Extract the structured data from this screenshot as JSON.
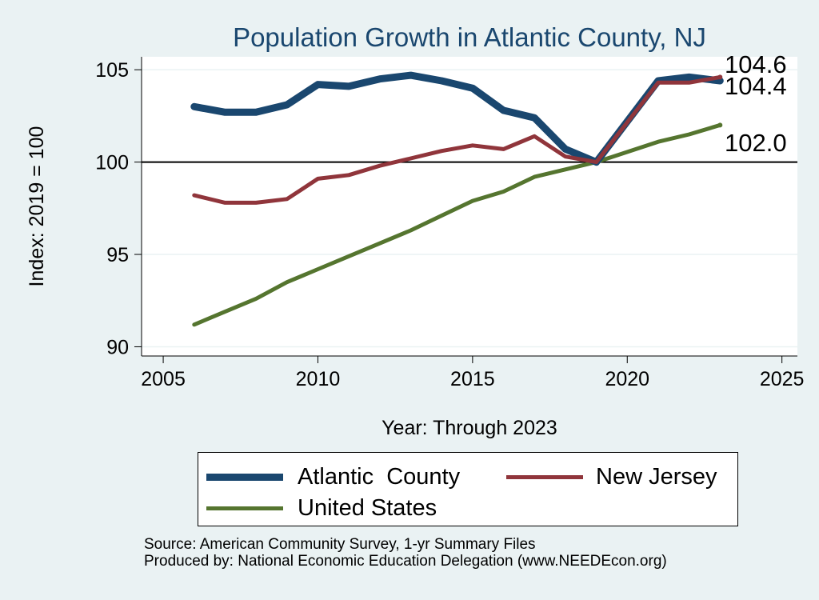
{
  "chart_data": {
    "type": "line",
    "title": "Population Growth in Atlantic County, NJ",
    "xlabel": "Year: Through 2023",
    "ylabel": "Index: 2019 = 100",
    "xlim": [
      2004.3,
      2025.5
    ],
    "ylim": [
      89.5,
      105.7
    ],
    "x_ticks": [
      "2005",
      "2010",
      "2015",
      "2020",
      "2025"
    ],
    "y_ticks": [
      "90",
      "95",
      "100",
      "105"
    ],
    "reference_line": 100,
    "grid": true,
    "legend_position": "bottom",
    "x": [
      2006,
      2007,
      2008,
      2009,
      2010,
      2011,
      2012,
      2013,
      2014,
      2015,
      2016,
      2017,
      2018,
      2019,
      2021,
      2022,
      2023
    ],
    "series": [
      {
        "name": "Atlantic  County",
        "color": "#1a476f",
        "width": 9,
        "values": [
          103.0,
          102.7,
          102.7,
          103.1,
          104.2,
          104.1,
          104.5,
          104.7,
          104.4,
          104.0,
          102.8,
          102.4,
          100.7,
          100.0,
          104.4,
          104.6,
          104.4
        ],
        "end_label": "104.4"
      },
      {
        "name": "New Jersey",
        "color": "#90353b",
        "width": 5,
        "values": [
          98.2,
          97.8,
          97.8,
          98.0,
          99.1,
          99.3,
          99.8,
          100.2,
          100.6,
          100.9,
          100.7,
          101.4,
          100.3,
          100.0,
          104.3,
          104.3,
          104.6
        ],
        "end_label": "104.6"
      },
      {
        "name": "United States",
        "color": "#55752f",
        "width": 5,
        "values": [
          91.2,
          91.9,
          92.6,
          93.5,
          94.2,
          94.9,
          95.6,
          96.3,
          97.1,
          97.9,
          98.4,
          99.2,
          99.6,
          100.0,
          101.1,
          101.5,
          102.0
        ],
        "end_label": "102.0"
      }
    ]
  },
  "source": {
    "line1": "Source: American Community Survey, 1-yr Summary Files",
    "line2": "Produced by: National Economic Education Delegation (www.NEEDEcon.org)"
  }
}
